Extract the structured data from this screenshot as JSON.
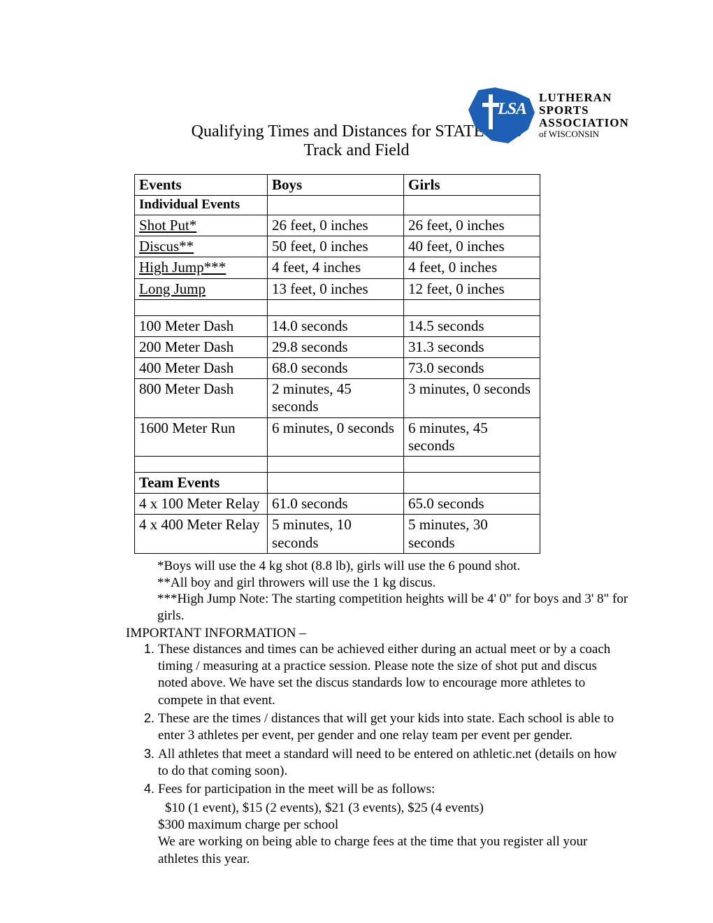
{
  "logo": {
    "badge_color": "#1d5fb4",
    "initials": "LSA",
    "line1": "LUTHERAN",
    "line2": "SPORTS",
    "line3": "ASSOCIATION",
    "line4": "of WISCONSIN"
  },
  "title": {
    "line1": "Qualifying Times and Distances for STATE 2018",
    "line2": "Track and Field"
  },
  "table": {
    "columns": [
      "Events",
      "Boys",
      "Girls"
    ],
    "section1_label": "Individual Events",
    "rows1": [
      {
        "event": "Shot Put*",
        "underline": true,
        "boys": "26 feet, 0 inches",
        "girls": "26 feet, 0 inches"
      },
      {
        "event": "Discus**",
        "underline": true,
        "boys": "50 feet, 0 inches",
        "girls": "40 feet, 0 inches"
      },
      {
        "event": "High Jump***",
        "underline": true,
        "boys": "4 feet, 4 inches",
        "girls": "4 feet, 0 inches"
      },
      {
        "event": "Long Jump",
        "underline": true,
        "boys": "13 feet, 0 inches",
        "girls": "12 feet, 0 inches"
      }
    ],
    "rows2": [
      {
        "event": "100 Meter Dash",
        "boys": "14.0 seconds",
        "girls": "14.5 seconds"
      },
      {
        "event": "200 Meter Dash",
        "boys": "29.8 seconds",
        "girls": "31.3 seconds"
      },
      {
        "event": "400 Meter Dash",
        "boys": "68.0 seconds",
        "girls": "73.0 seconds"
      },
      {
        "event": "800 Meter Dash",
        "boys": "2 minutes, 45 seconds",
        "girls": "3 minutes, 0 seconds"
      },
      {
        "event": "1600 Meter Run",
        "boys": "6 minutes, 0 seconds",
        "girls": "6 minutes, 45 seconds"
      }
    ],
    "section2_label": "Team Events",
    "rows3": [
      {
        "event": "4 x 100 Meter Relay",
        "boys": "61.0 seconds",
        "girls": "65.0 seconds"
      },
      {
        "event": "4 x 400 Meter Relay",
        "boys": "5 minutes, 10 seconds",
        "girls": "5 minutes, 30 seconds"
      }
    ]
  },
  "footnotes": {
    "f1": "*Boys will use the 4 kg shot (8.8 lb), girls will use the 6 pound shot.",
    "f2": "**All boy and girl throwers will use the 1 kg discus.",
    "f3": "***High Jump Note: The starting competition heights will be 4' 0\" for boys and 3' 8\" for girls."
  },
  "important_heading": "IMPORTANT INFORMATION –",
  "info": [
    "These distances and times can be achieved either during an actual meet or by a coach timing / measuring at a practice session.  Please note the size of shot put and discus noted above.  We have set the discus standards low to encourage more athletes to compete in that event.",
    "These are the times / distances that will get your kids into state.  Each school is able to enter 3 athletes per event, per gender and one relay team per event per gender.",
    "All athletes that meet a standard will need to be entered on athletic.net (details on how to do that coming soon).",
    "Fees for participation in the meet will be as follows:"
  ],
  "fees": {
    "line1": "$10 (1 event), $15 (2 events), $21 (3 events), $25 (4 events)",
    "line2": "$300 maximum charge per school",
    "line3": "We are working on being able to charge fees at the time that you register all your athletes this year."
  }
}
